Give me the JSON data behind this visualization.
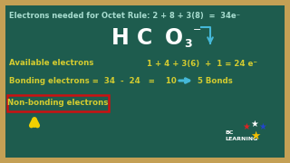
{
  "bg_outer": "#c4a055",
  "bg_board": "#1e5c4e",
  "title_text": "Electrons needed for Octet Rule: 2 + 8 + 3(8)  =  34e⁻",
  "avail_label": "Available electrons",
  "avail_eq": "1 + 4 + 3(6)  +  1 = 24 e⁻",
  "bond_text": "Bonding electrons =  34  -  24   =    10",
  "bond_result": "5 Bonds",
  "nonbond_text": "Non-bonding electrons",
  "title_color": "#a8ddd0",
  "text_color": "#d4cc30",
  "white_color": "#ffffff",
  "red_box_color": "#cc1111",
  "arrow_color": "#45b8d8",
  "bond_arrow_color": "#45b8d8",
  "yellow_arrow_color": "#f0d000",
  "formula_minus": "−"
}
